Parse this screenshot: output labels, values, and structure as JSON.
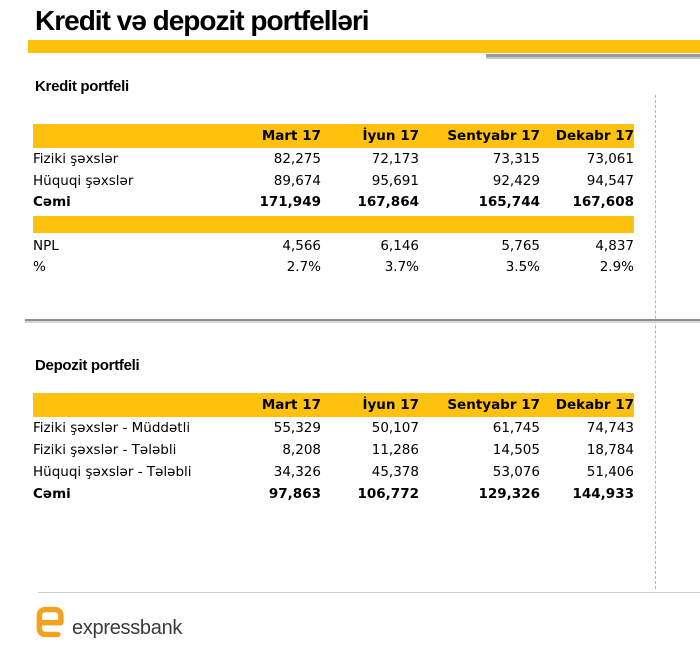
{
  "page": {
    "title": "Kredit və depozit portfelləri"
  },
  "colors": {
    "accent_yellow": "#fdc10e",
    "accent_gray": "#9a9a9a",
    "logo_orange": "#f2a21b",
    "logo_text_color": "#3a3a3a"
  },
  "kredit": {
    "heading": "Kredit portfeli",
    "columns": [
      "Mart 17",
      "İyun 17",
      "Sentyabr 17",
      "Dekabr 17"
    ],
    "rows": [
      {
        "label": "Fiziki şəxslər",
        "values": [
          "82,275",
          "72,173",
          "73,315",
          "73,061"
        ],
        "bold": false
      },
      {
        "label": "Hüquqi şəxslər",
        "values": [
          "89,674",
          "95,691",
          "92,429",
          "94,547"
        ],
        "bold": false
      },
      {
        "label": "Cəmi",
        "values": [
          "171,949",
          "167,864",
          "165,744",
          "167,608"
        ],
        "bold": true
      }
    ],
    "extra_rows": [
      {
        "label": "NPL",
        "values": [
          "4,566",
          "6,146",
          "5,765",
          "4,837"
        ],
        "bold": false
      },
      {
        "label": "%",
        "values": [
          "2.7%",
          "3.7%",
          "3.5%",
          "2.9%"
        ],
        "bold": false
      }
    ]
  },
  "depozit": {
    "heading": "Depozit portfeli",
    "columns": [
      "Mart 17",
      "İyun 17",
      "Sentyabr 17",
      "Dekabr 17"
    ],
    "rows": [
      {
        "label": "Fiziki şəxslər - Müddətli",
        "values": [
          "55,329",
          "50,107",
          "61,745",
          "74,743"
        ],
        "bold": false
      },
      {
        "label": "Fiziki şəxslər - Tələbli",
        "values": [
          "8,208",
          "11,286",
          "14,505",
          "18,784"
        ],
        "bold": false
      },
      {
        "label": "Hüquqi şəxslər - Tələbli",
        "values": [
          "34,326",
          "45,378",
          "53,076",
          "51,406"
        ],
        "bold": false
      },
      {
        "label": "Cəmi",
        "values": [
          "97,863",
          "106,772",
          "129,326",
          "144,933"
        ],
        "bold": true
      }
    ]
  },
  "footer": {
    "logo_text": "expressbank"
  }
}
